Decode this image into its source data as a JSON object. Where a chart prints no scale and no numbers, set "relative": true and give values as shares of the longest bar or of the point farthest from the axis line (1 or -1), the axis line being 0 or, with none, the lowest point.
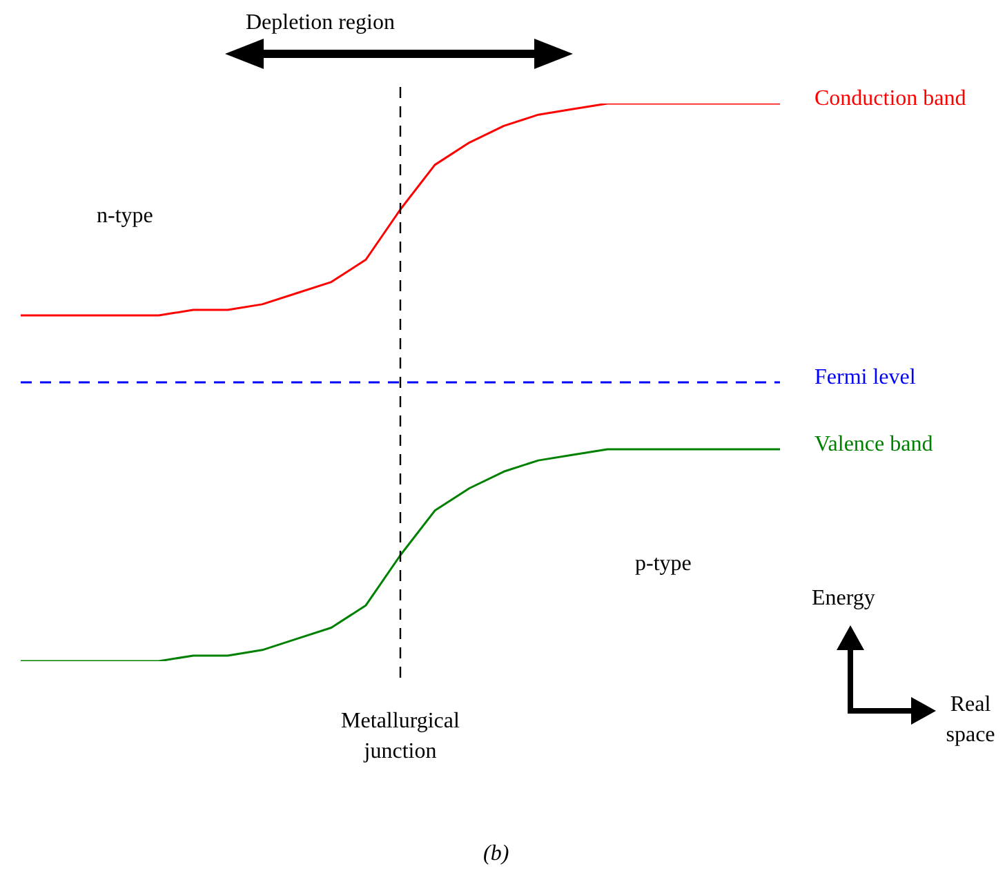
{
  "chart_data": {
    "type": "line",
    "relative": true,
    "categories": [
      null,
      null,
      null,
      null,
      null,
      null,
      null,
      null,
      null,
      null,
      null,
      null,
      null,
      null,
      null,
      null,
      null,
      null,
      null,
      null,
      null,
      null,
      null
    ],
    "series": [
      {
        "name": "Conduction band",
        "color": "#ff0000",
        "values": [
          0.62,
          0.62,
          0.62,
          0.62,
          0.62,
          0.63,
          0.63,
          0.64,
          0.66,
          0.68,
          0.72,
          0.81,
          0.89,
          0.93,
          0.96,
          0.98,
          0.99,
          1,
          1,
          1,
          1,
          1,
          1
        ]
      },
      {
        "name": "Fermi level",
        "color": "#0000ff",
        "line_style": "dashed",
        "values": [
          0.5,
          0.5,
          0.5,
          0.5,
          0.5,
          0.5,
          0.5,
          0.5,
          0.5,
          0.5,
          0.5,
          0.5,
          0.5,
          0.5,
          0.5,
          0.5,
          0.5,
          0.5,
          0.5,
          0.5,
          0.5,
          0.5,
          0.5
        ]
      },
      {
        "name": "Valence band",
        "color": "#008000",
        "values": [
          0,
          0,
          0,
          0,
          0,
          0.01,
          0.01,
          0.02,
          0.04,
          0.06,
          0.1,
          0.19,
          0.27,
          0.31,
          0.34,
          0.36,
          0.37,
          0.38,
          0.38,
          0.38,
          0.38,
          0.38,
          0.38
        ]
      }
    ],
    "annotations": [
      "Depletion region",
      "n-type",
      "p-type",
      "Metallurgical junction",
      "Energy",
      "Real space",
      "(b)"
    ],
    "legend": false,
    "marker": "none",
    "tick_labels": false
  }
}
